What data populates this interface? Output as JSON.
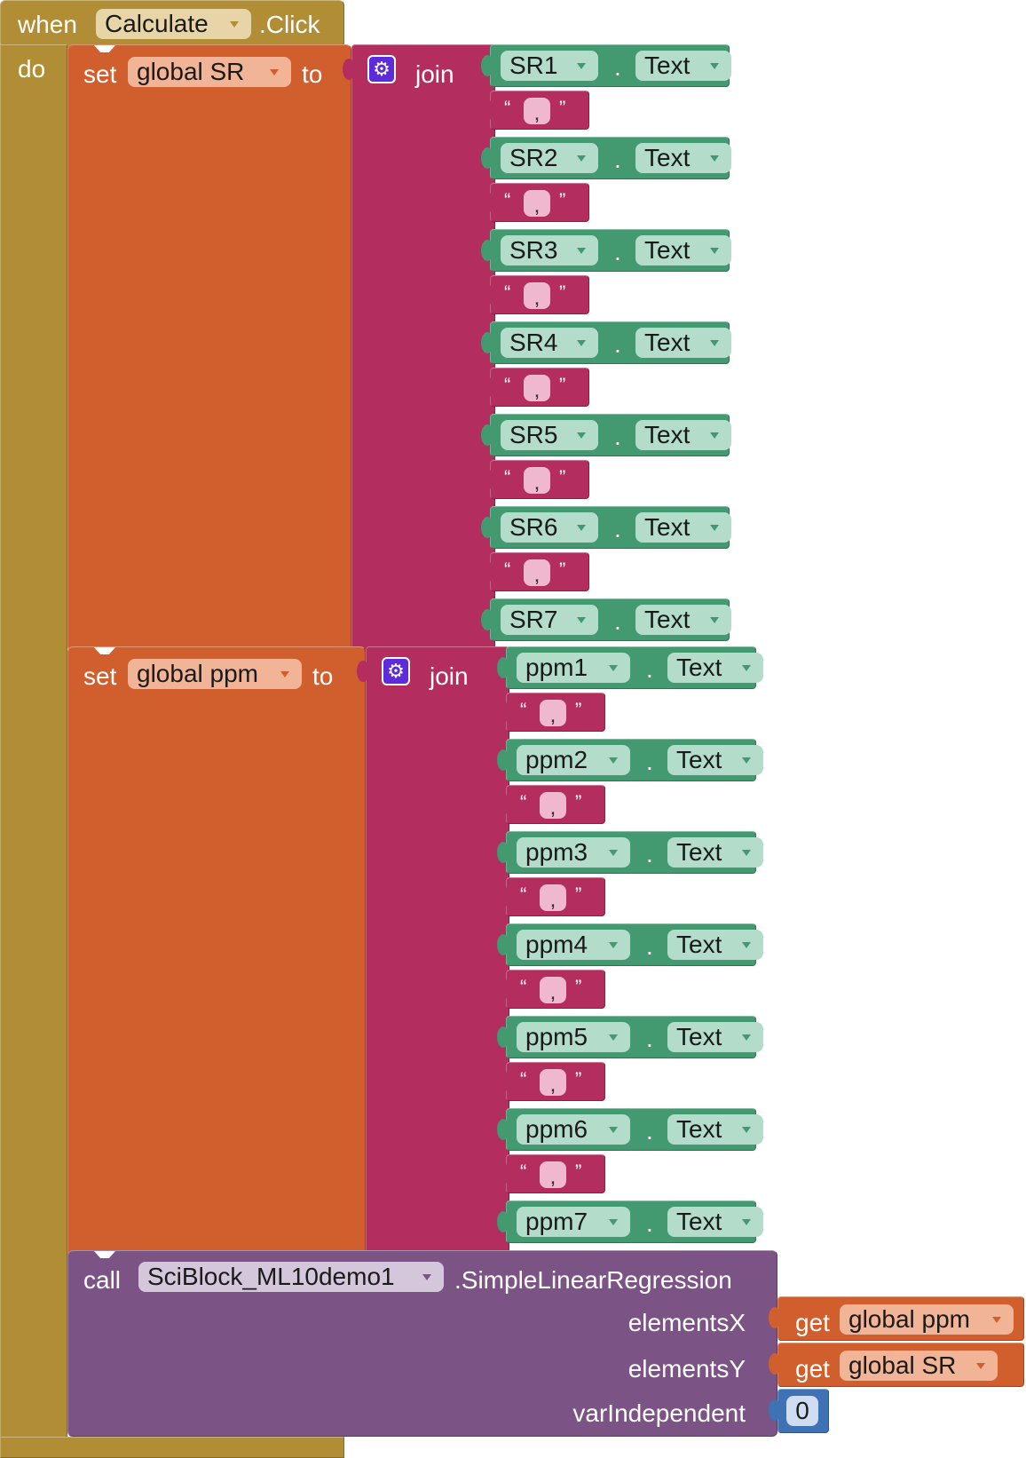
{
  "event": {
    "when_label": "when",
    "component": "Calculate",
    "event_name": ".Click",
    "do_label": "do"
  },
  "set_sr": {
    "set_label": "set",
    "variable": "global SR",
    "to_label": "to",
    "join_label": "join",
    "items": [
      "SR1",
      "SR2",
      "SR3",
      "SR4",
      "SR5",
      "SR6",
      "SR7"
    ],
    "property": "Text",
    "separator": ",",
    "dot": "."
  },
  "set_ppm": {
    "set_label": "set",
    "variable": "global ppm",
    "to_label": "to",
    "join_label": "join",
    "items": [
      "ppm1",
      "ppm2",
      "ppm3",
      "ppm4",
      "ppm5",
      "ppm6",
      "ppm7"
    ],
    "property": "Text",
    "separator": ",",
    "dot": "."
  },
  "call": {
    "call_label": "call",
    "component": "SciBlock_ML10demo1",
    "method": ".SimpleLinearRegression",
    "params": [
      {
        "name": "elementsX",
        "get_label": "get",
        "variable": "global ppm"
      },
      {
        "name": "elementsY",
        "get_label": "get",
        "variable": "global SR"
      }
    ],
    "var_independent_label": "varIndependent",
    "var_independent_value": "0"
  },
  "colors": {
    "event": "#b18e35",
    "variable": "#d05f2d",
    "text": "#b32d5e",
    "component": "#439970",
    "procedure": "#7c5385",
    "math": "#3f71b5"
  }
}
